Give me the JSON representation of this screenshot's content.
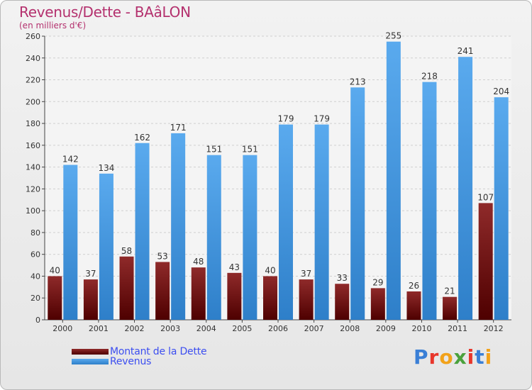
{
  "title": "Revenus/Dette - BAâLON",
  "subtitle": "(en milliers d'€)",
  "logo": {
    "text": "Proxiti",
    "letter_colors": [
      "#3a7fd6",
      "#e8362b",
      "#f2a21a",
      "#4aa13c",
      "#e8362b",
      "#3a7fd6",
      "#f2a21a"
    ]
  },
  "legend": [
    {
      "label": "Montant de la Dette",
      "color": "#6b0a0a"
    },
    {
      "label": "Revenus",
      "color": "#4a9fe0"
    }
  ],
  "chart_data": {
    "type": "bar",
    "title": "Revenus/Dette - BAâLON",
    "ylabel": "(en milliers d'€)",
    "categories": [
      "2000",
      "2001",
      "2002",
      "2003",
      "2004",
      "2005",
      "2006",
      "2007",
      "2008",
      "2009",
      "2010",
      "2011",
      "2012"
    ],
    "series": [
      {
        "name": "Montant de la Dette",
        "color": "#6b0a0a",
        "values": [
          40,
          37,
          58,
          53,
          48,
          43,
          40,
          37,
          33,
          29,
          26,
          21,
          107
        ]
      },
      {
        "name": "Revenus",
        "color": "#4a9fe0",
        "values": [
          142,
          134,
          162,
          171,
          151,
          151,
          179,
          179,
          213,
          255,
          218,
          241,
          204
        ]
      }
    ],
    "ylim": [
      0,
      260
    ],
    "yticks": [
      0,
      20,
      40,
      60,
      80,
      100,
      120,
      140,
      160,
      180,
      200,
      220,
      240,
      260
    ],
    "grid": true,
    "legend_position": "bottom-left"
  }
}
